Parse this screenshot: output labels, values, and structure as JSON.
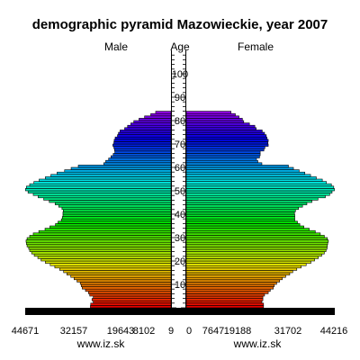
{
  "chart_data": {
    "type": "bar",
    "orientation": "horizontal-pyramid",
    "title": "demographic pyramid Mazowieckie, year 2007",
    "left_label": "Male",
    "center_label": "Age",
    "right_label": "Female",
    "age_ticks": [
      "10",
      "20",
      "30",
      "40",
      "50",
      "60",
      "70",
      "80",
      "90",
      "100"
    ],
    "male_ticks": [
      "44671",
      "32157",
      "19643",
      "8102",
      "9"
    ],
    "female_ticks": [
      "0",
      "7647",
      "19188",
      "31702",
      "44216"
    ],
    "male_xlim": [
      0,
      44671
    ],
    "female_xlim": [
      0,
      44216
    ],
    "footer_left": "www.iz.sk",
    "footer_right": "www.iz.sk",
    "ages": [
      0,
      1,
      2,
      3,
      4,
      5,
      6,
      7,
      8,
      9,
      10,
      11,
      12,
      13,
      14,
      15,
      16,
      17,
      18,
      19,
      20,
      21,
      22,
      23,
      24,
      25,
      26,
      27,
      28,
      29,
      30,
      31,
      32,
      33,
      34,
      35,
      36,
      37,
      38,
      39,
      40,
      41,
      42,
      43,
      44,
      45,
      46,
      47,
      48,
      49,
      50,
      51,
      52,
      53,
      54,
      55,
      56,
      57,
      58,
      59,
      60,
      61,
      62,
      63,
      64,
      65,
      66,
      67,
      68,
      69,
      70,
      71,
      72,
      73,
      74,
      75,
      76,
      77,
      78,
      79,
      80,
      81,
      82,
      83,
      84,
      85,
      86,
      87,
      88,
      89,
      90,
      91,
      92,
      93,
      94,
      95,
      96,
      97,
      98,
      99,
      100
    ],
    "male": [
      24700,
      24600,
      23800,
      24200,
      23800,
      24900,
      25300,
      26200,
      27200,
      27500,
      27800,
      28800,
      29700,
      30700,
      31900,
      32900,
      34100,
      35600,
      37000,
      38500,
      39800,
      40800,
      41900,
      42700,
      43300,
      43600,
      44100,
      44300,
      44400,
      44100,
      43300,
      42200,
      40500,
      38600,
      37100,
      35400,
      34600,
      33600,
      33300,
      33100,
      33100,
      33000,
      33400,
      34400,
      35500,
      37300,
      39000,
      40700,
      42200,
      43800,
      44600,
      44300,
      43300,
      42000,
      40400,
      38500,
      36800,
      34900,
      32600,
      30600,
      28400,
      20600,
      20000,
      19100,
      18400,
      17700,
      17200,
      17300,
      17500,
      17800,
      17500,
      17400,
      17100,
      16400,
      16100,
      15600,
      14200,
      13300,
      12300,
      11400,
      9800,
      8100,
      6200,
      4700,
      0,
      0,
      0,
      0,
      0,
      0,
      0,
      0,
      0,
      0,
      0,
      0,
      0,
      0,
      0,
      0,
      0
    ],
    "female": [
      23000,
      23000,
      22500,
      22800,
      22800,
      23300,
      24400,
      25000,
      25900,
      26200,
      26900,
      27800,
      28600,
      29600,
      30800,
      31700,
      32900,
      34200,
      35700,
      37100,
      38200,
      39300,
      40300,
      41100,
      41600,
      41900,
      42000,
      42100,
      42300,
      42000,
      41100,
      39900,
      38400,
      36600,
      35000,
      33800,
      33100,
      32300,
      32300,
      32300,
      32200,
      32500,
      33400,
      34600,
      35900,
      37400,
      39200,
      41400,
      42700,
      43400,
      44100,
      43900,
      43200,
      41700,
      40500,
      38700,
      37000,
      35300,
      33600,
      31900,
      30400,
      22500,
      21300,
      20900,
      21800,
      22000,
      22000,
      23100,
      23400,
      24400,
      24300,
      24400,
      24000,
      23800,
      23300,
      22600,
      20800,
      20400,
      18800,
      17100,
      16700,
      15700,
      14600,
      13300,
      0,
      0,
      0,
      0,
      0,
      0,
      0,
      0,
      0,
      0,
      0,
      0,
      0,
      0,
      0,
      0,
      0
    ]
  }
}
